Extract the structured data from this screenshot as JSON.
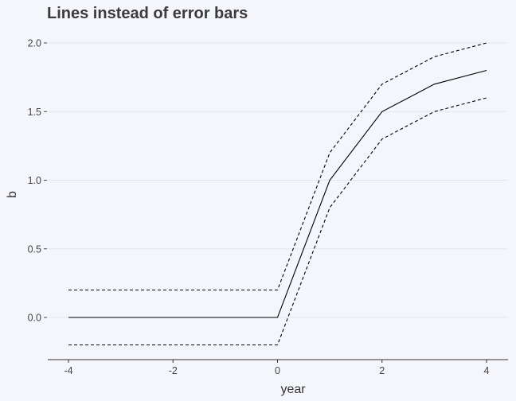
{
  "chart_data": {
    "type": "line",
    "title": "Lines instead of error bars",
    "xlabel": "year",
    "ylabel": "b",
    "xlim": [
      -4.4,
      4.4
    ],
    "ylim": [
      -0.3,
      2.05
    ],
    "x_ticks": [
      -4,
      -2,
      0,
      2,
      4
    ],
    "x_tick_labels": [
      "-4",
      "-2",
      "0",
      "2",
      "4"
    ],
    "y_ticks": [
      0,
      0.5,
      1,
      1.5,
      2
    ],
    "y_tick_labels": [
      "0.0",
      "0.5",
      "1.0",
      "1.5",
      "2.0"
    ],
    "grid": "horizontal",
    "x": [
      -4,
      -3,
      -2,
      -1,
      0,
      1,
      2,
      3,
      4
    ],
    "series": [
      {
        "style": "solid",
        "color": "#000000",
        "values": [
          0,
          0,
          0,
          0,
          0,
          1.0,
          1.5,
          1.7,
          1.8
        ]
      },
      {
        "style": "dashed",
        "color": "#000000",
        "values": [
          0.2,
          0.2,
          0.2,
          0.2,
          0.2,
          1.2,
          1.7,
          1.9,
          2.0
        ]
      },
      {
        "style": "dashed",
        "color": "#000000",
        "values": [
          -0.2,
          -0.2,
          -0.2,
          -0.2,
          -0.2,
          0.8,
          1.3,
          1.5,
          1.6
        ]
      }
    ]
  }
}
